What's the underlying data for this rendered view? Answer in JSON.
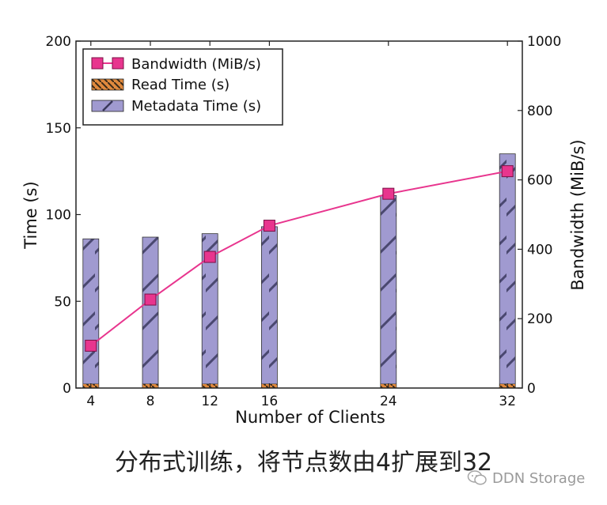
{
  "chart_data": {
    "type": "bar",
    "categories": [
      "4",
      "8",
      "12",
      "16",
      "24",
      "32"
    ],
    "x": [
      4,
      8,
      12,
      16,
      24,
      32
    ],
    "xlabel": "Number of Clients",
    "ylabel_left": "Time (s)",
    "ylabel_right": "Bandwidth (MiB/s)",
    "ylim_left": [
      0,
      200
    ],
    "ylim_right": [
      0,
      1000
    ],
    "yticks_left": [
      "0",
      "50",
      "100",
      "150",
      "200"
    ],
    "yticks_right": [
      "0",
      "200",
      "400",
      "600",
      "800",
      "1000"
    ],
    "legend_position": "top-left",
    "grid": false,
    "series": [
      {
        "name": "Bandwidth (MiB/s)",
        "type": "line",
        "axis": "right",
        "color": "#e8358e",
        "values": [
          122,
          255,
          378,
          468,
          560,
          625
        ]
      },
      {
        "name": "Read Time (s)",
        "type": "bar",
        "axis": "left",
        "color": "#e0893d",
        "values": [
          1,
          1,
          1,
          1,
          1,
          1
        ]
      },
      {
        "name": "Metadata Time (s)",
        "type": "bar",
        "axis": "left",
        "color": "#a09ad0",
        "values": [
          86,
          87,
          89,
          93,
          111,
          135
        ]
      }
    ]
  },
  "caption": "分布式训练，将节点数由4扩展到32",
  "watermark": "DDN Storage"
}
